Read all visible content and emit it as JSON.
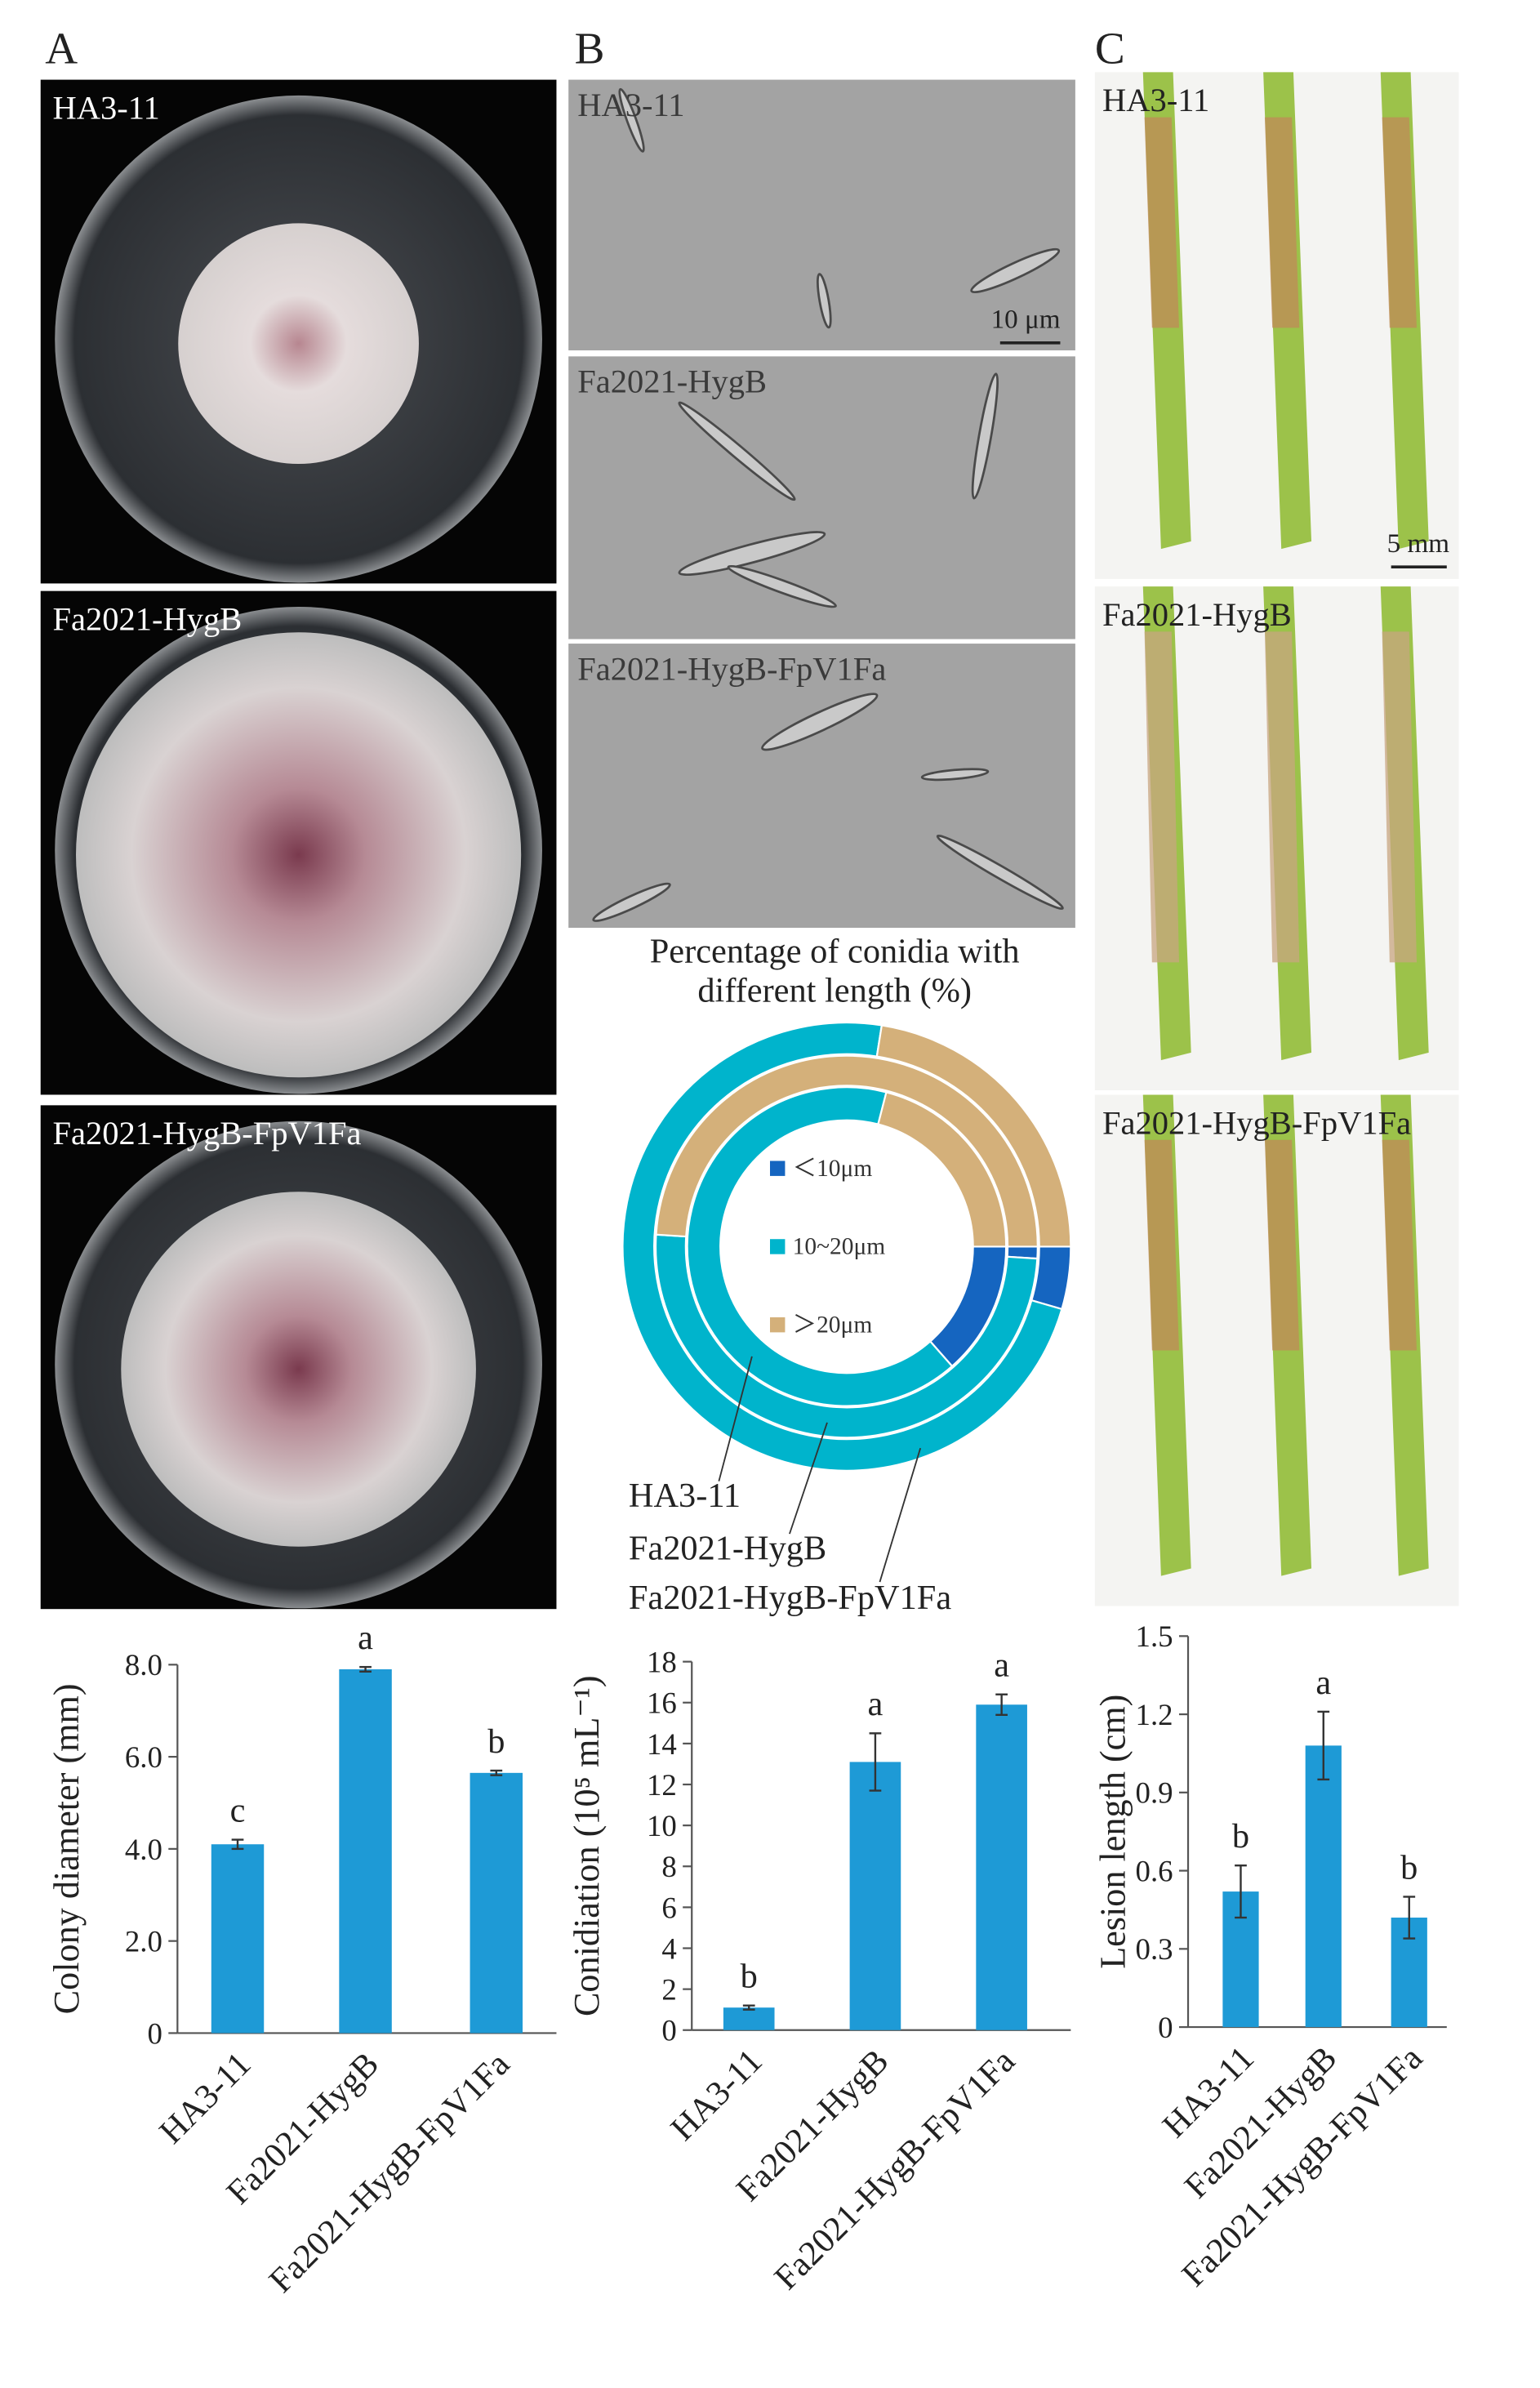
{
  "panel_labels": [
    "A",
    "B",
    "C"
  ],
  "photos": {
    "A": [
      "HA3-11",
      "Fa2021-HygB",
      "Fa2021-HygB-FpV1Fa"
    ],
    "B": [
      "HA3-11",
      "Fa2021-HygB",
      "Fa2021-HygB-FpV1Fa"
    ],
    "C": [
      "HA3-11",
      "Fa2021-HygB",
      "Fa2021-HygB-FpV1Fa"
    ]
  },
  "scale_bars": {
    "B": "10 μm",
    "C": "5 mm"
  },
  "chart_data": [
    {
      "type": "bar",
      "ylabel": "Colony diameter (mm)",
      "categories": [
        "HA3-11",
        "Fa2021-HygB",
        "Fa2021-HygB-FpV1Fa"
      ],
      "values": [
        4.1,
        7.9,
        5.65
      ],
      "errors": [
        0.1,
        0.05,
        0.05
      ],
      "annotations": [
        "c",
        "a",
        "b"
      ],
      "color": "#1e9ad6",
      "ylim": [
        0,
        8
      ],
      "yticks": [
        0,
        {
          "value": 2,
          "label": "2.0"
        },
        {
          "value": 4,
          "label": "4.0"
        },
        {
          "value": 6,
          "label": "6.0"
        },
        {
          "value": 8,
          "label": "8.0"
        }
      ]
    },
    {
      "type": "bar",
      "ylabel": "Conidiation (10⁵ mL⁻¹)",
      "categories": [
        "HA3-11",
        "Fa2021-HygB",
        "Fa2021-HygB-FpV1Fa"
      ],
      "values": [
        1.1,
        13.1,
        15.9
      ],
      "errors": [
        0.1,
        1.4,
        0.5
      ],
      "annotations": [
        "b",
        "a",
        "a"
      ],
      "color": "#1e9ad6",
      "ylim": [
        0,
        18
      ],
      "yticks": [
        0,
        2,
        4,
        6,
        8,
        10,
        12,
        14,
        16,
        18
      ]
    },
    {
      "type": "bar",
      "ylabel": "Lesion length (cm)",
      "categories": [
        "HA3-11",
        "Fa2021-HygB",
        "Fa2021-HygB-FpV1Fa"
      ],
      "values": [
        0.52,
        1.08,
        0.42
      ],
      "errors": [
        0.1,
        0.13,
        0.08
      ],
      "annotations": [
        "b",
        "a",
        "b"
      ],
      "color": "#1e9ad6",
      "ylim": [
        0,
        1.5
      ],
      "yticks": [
        0,
        0.3,
        0.6,
        0.9,
        1.2,
        1.5
      ]
    },
    {
      "type": "donut",
      "title": "Percentage of conidia with different length (%)",
      "categories": [
        "＜10μm",
        "10~20μm",
        "＞20μm"
      ],
      "colors": [
        "#1565c0",
        "#00b4cc",
        "#d4b07a"
      ],
      "series": [
        {
          "name": "HA3-11",
          "values": [
            13.5,
            65.5,
            21
          ]
        },
        {
          "name": "Fa2021-HygB",
          "values": [
            1,
            50,
            49
          ]
        },
        {
          "name": "Fa2021-HygB-FpV1Fa",
          "values": [
            4.5,
            73,
            22.5
          ]
        }
      ]
    }
  ]
}
